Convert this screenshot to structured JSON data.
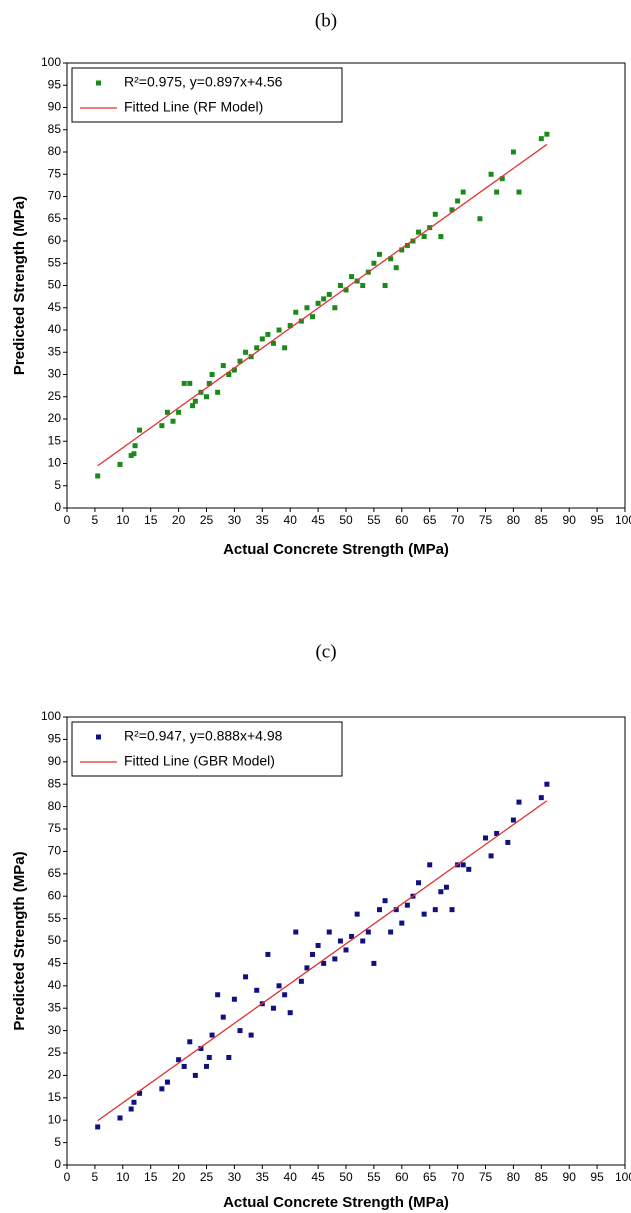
{
  "chart_data": [
    {
      "type": "scatter",
      "title": "(b)",
      "x_label": "Actual Concrete Strength (MPa)",
      "y_label": "Predicted Strength (MPa)",
      "xlim": [
        0,
        100
      ],
      "ylim": [
        0,
        100
      ],
      "xticks": [
        0,
        5,
        10,
        15,
        20,
        25,
        30,
        35,
        40,
        45,
        50,
        55,
        60,
        65,
        70,
        75,
        80,
        85,
        90,
        95,
        100
      ],
      "yticks": [
        0,
        5,
        10,
        15,
        20,
        25,
        30,
        35,
        40,
        45,
        50,
        55,
        60,
        65,
        70,
        75,
        80,
        85,
        90,
        95,
        100
      ],
      "legend": "upper left",
      "series": [
        {
          "name": "R²=0.975, y=0.897x+4.56",
          "color": "#1a8a1a",
          "marker": "square",
          "x": [
            5.5,
            9.5,
            11.5,
            12,
            12.2,
            13,
            17,
            18,
            19,
            20,
            21,
            22,
            22.5,
            23,
            24,
            25,
            25.5,
            26,
            27,
            28,
            29,
            30,
            31,
            32,
            33,
            34,
            35,
            36,
            37,
            38,
            39,
            40,
            41,
            42,
            43,
            44,
            45,
            46,
            47,
            48,
            49,
            50,
            51,
            52,
            53,
            54,
            55,
            56,
            57,
            58,
            59,
            60,
            61,
            62,
            63,
            64,
            65,
            66,
            67,
            69,
            70,
            71,
            74,
            76,
            77,
            78,
            80,
            81,
            85,
            86
          ],
          "values": [
            7.2,
            9.8,
            11.8,
            12.2,
            14,
            17.5,
            18.5,
            21.5,
            19.5,
            21.5,
            28,
            28,
            23,
            24,
            26,
            25,
            28,
            30,
            26,
            32,
            30,
            31,
            33,
            35,
            34,
            36,
            38,
            39,
            37,
            40,
            36,
            41,
            44,
            42,
            45,
            43,
            46,
            47,
            48,
            45,
            50,
            49,
            52,
            51,
            50,
            53,
            55,
            57,
            50,
            56,
            54,
            58,
            59,
            60,
            62,
            61,
            63,
            66,
            61,
            67,
            69,
            71,
            65,
            75,
            71,
            74,
            80,
            71,
            83,
            84
          ]
        },
        {
          "name": "Fitted Line (RF Model)",
          "color": "#e03030",
          "marker": "line",
          "x": [
            5.5,
            86
          ],
          "values": [
            9.5,
            81.7
          ]
        }
      ]
    },
    {
      "type": "scatter",
      "title": "(c)",
      "x_label": "Actual Concrete Strength (MPa)",
      "y_label": "Predicted Strength (MPa)",
      "xlim": [
        0,
        100
      ],
      "ylim": [
        0,
        100
      ],
      "xticks": [
        0,
        5,
        10,
        15,
        20,
        25,
        30,
        35,
        40,
        45,
        50,
        55,
        60,
        65,
        70,
        75,
        80,
        85,
        90,
        95,
        100
      ],
      "yticks": [
        0,
        5,
        10,
        15,
        20,
        25,
        30,
        35,
        40,
        45,
        50,
        55,
        60,
        65,
        70,
        75,
        80,
        85,
        90,
        95,
        100
      ],
      "legend": "upper left",
      "series": [
        {
          "name": "R²=0.947, y=0.888x+4.98",
          "color": "#101080",
          "marker": "square",
          "x": [
            5.5,
            9.5,
            11.5,
            12,
            13,
            17,
            18,
            20,
            21,
            22,
            23,
            24,
            25,
            25.5,
            26,
            27,
            28,
            29,
            30,
            31,
            32,
            33,
            34,
            35,
            36,
            37,
            38,
            39,
            40,
            41,
            42,
            43,
            44,
            45,
            46,
            47,
            48,
            49,
            50,
            51,
            52,
            53,
            54,
            55,
            56,
            57,
            58,
            59,
            60,
            61,
            62,
            63,
            64,
            65,
            66,
            67,
            68,
            69,
            70,
            71,
            72,
            75,
            76,
            77,
            79,
            80,
            81,
            85,
            86
          ],
          "values": [
            8.5,
            10.5,
            12.5,
            14,
            16,
            17,
            18.5,
            23.5,
            22,
            27.5,
            20,
            26,
            22,
            24,
            29,
            38,
            33,
            24,
            37,
            30,
            42,
            29,
            39,
            36,
            47,
            35,
            40,
            38,
            34,
            52,
            41,
            44,
            47,
            49,
            45,
            52,
            46,
            50,
            48,
            51,
            56,
            50,
            52,
            45,
            57,
            59,
            52,
            57,
            54,
            58,
            60,
            63,
            56,
            67,
            57,
            61,
            62,
            57,
            67,
            67,
            66,
            73,
            69,
            74,
            72,
            77,
            81,
            82,
            85
          ]
        },
        {
          "name": "Fitted Line (GBR Model)",
          "color": "#e03030",
          "marker": "line",
          "x": [
            5.5,
            86
          ],
          "values": [
            9.9,
            81.3
          ]
        }
      ]
    }
  ]
}
